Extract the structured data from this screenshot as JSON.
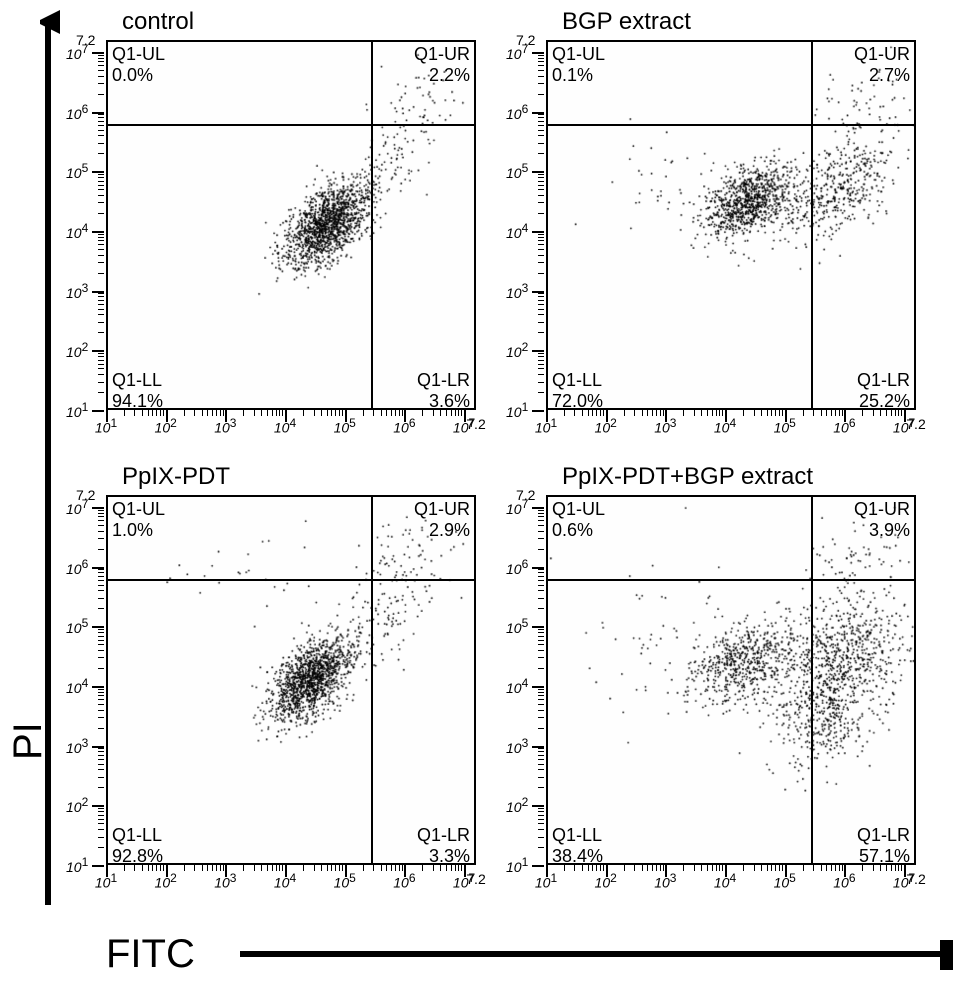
{
  "figure": {
    "background_color": "#ffffff",
    "axis_color": "#000000",
    "ylabel": "PI",
    "xlabel": "FITC",
    "arrow_color": "#000000",
    "arrow_width": 6,
    "axis_label_fontsize": 40,
    "axis_log_base": 10,
    "axis_range": {
      "min_exp": 1,
      "max_exp": 7.2
    },
    "tick_major_exps": [
      1,
      2,
      3,
      4,
      5,
      6,
      7
    ],
    "tick_end_label": "7.2",
    "tick_minor_per_decade": 8,
    "tick_label_prefix": "10",
    "quadrant_gate": {
      "x_exp": 5.4,
      "y_exp": 5.82
    },
    "quad_labels": {
      "UL": "Q1-UL",
      "UR": "Q1-UR",
      "LL": "Q1-LL",
      "LR": "Q1-LR"
    },
    "dot_color": "#000000",
    "dot_radius": 0.9,
    "panel_title_fontsize": 24,
    "quad_label_fontsize": 18
  },
  "panels": [
    {
      "key": "control",
      "title": "control",
      "quadrants": {
        "UL": "0.0%",
        "UR": "2.2%",
        "LL": "94.1%",
        "LR": "3.6%"
      },
      "clusters": [
        {
          "cx_exp": 4.7,
          "cy_exp": 4.1,
          "sx": 0.35,
          "sy": 0.35,
          "n": 1400,
          "rho": 0.55
        },
        {
          "cx_exp": 5.6,
          "cy_exp": 4.9,
          "sx": 0.45,
          "sy": 0.45,
          "n": 120,
          "rho": 0.6
        },
        {
          "cx_exp": 6.2,
          "cy_exp": 6.2,
          "sx": 0.4,
          "sy": 0.4,
          "n": 50,
          "rho": 0.3
        }
      ]
    },
    {
      "key": "bgp",
      "title": "BGP extract",
      "quadrants": {
        "UL": "0.1%",
        "UR": "2.7%",
        "LL": "72.0%",
        "LR": "25.2%"
      },
      "clusters": [
        {
          "cx_exp": 4.4,
          "cy_exp": 4.5,
          "sx": 0.35,
          "sy": 0.3,
          "n": 900,
          "rho": 0.4
        },
        {
          "cx_exp": 5.9,
          "cy_exp": 4.7,
          "sx": 0.55,
          "sy": 0.45,
          "n": 450,
          "rho": 0.55
        },
        {
          "cx_exp": 6.4,
          "cy_exp": 6.1,
          "sx": 0.4,
          "sy": 0.4,
          "n": 60,
          "rho": 0.3
        },
        {
          "cx_exp": 3.0,
          "cy_exp": 4.6,
          "sx": 0.6,
          "sy": 0.6,
          "n": 40,
          "rho": 0.0
        }
      ]
    },
    {
      "key": "ppix",
      "title": "PpIX-PDT",
      "quadrants": {
        "UL": "1.0%",
        "UR": "2.9%",
        "LL": "92.8%",
        "LR": "3.3%"
      },
      "clusters": [
        {
          "cx_exp": 4.45,
          "cy_exp": 4.1,
          "sx": 0.35,
          "sy": 0.35,
          "n": 1350,
          "rho": 0.55
        },
        {
          "cx_exp": 5.7,
          "cy_exp": 5.2,
          "sx": 0.5,
          "sy": 0.5,
          "n": 110,
          "rho": 0.5
        },
        {
          "cx_exp": 6.1,
          "cy_exp": 6.2,
          "sx": 0.45,
          "sy": 0.4,
          "n": 60,
          "rho": 0.3
        },
        {
          "cx_exp": 3.2,
          "cy_exp": 5.9,
          "sx": 0.7,
          "sy": 0.4,
          "n": 25,
          "rho": 0.0
        }
      ]
    },
    {
      "key": "combo",
      "title": "PpIX-PDT+BGP extract",
      "quadrants": {
        "UL": "0.6%",
        "UR": "3.9%",
        "LL": "38.4%",
        "LR": "57.1%"
      },
      "clusters": [
        {
          "cx_exp": 4.3,
          "cy_exp": 4.4,
          "sx": 0.45,
          "sy": 0.35,
          "n": 550,
          "rho": 0.4
        },
        {
          "cx_exp": 5.9,
          "cy_exp": 4.3,
          "sx": 0.55,
          "sy": 0.6,
          "n": 850,
          "rho": 0.3
        },
        {
          "cx_exp": 5.7,
          "cy_exp": 3.3,
          "sx": 0.35,
          "sy": 0.35,
          "n": 180,
          "rho": 0.2
        },
        {
          "cx_exp": 6.3,
          "cy_exp": 6.0,
          "sx": 0.45,
          "sy": 0.45,
          "n": 80,
          "rho": 0.3
        },
        {
          "cx_exp": 3.0,
          "cy_exp": 4.8,
          "sx": 0.8,
          "sy": 0.7,
          "n": 60,
          "rho": 0.0
        }
      ]
    }
  ]
}
